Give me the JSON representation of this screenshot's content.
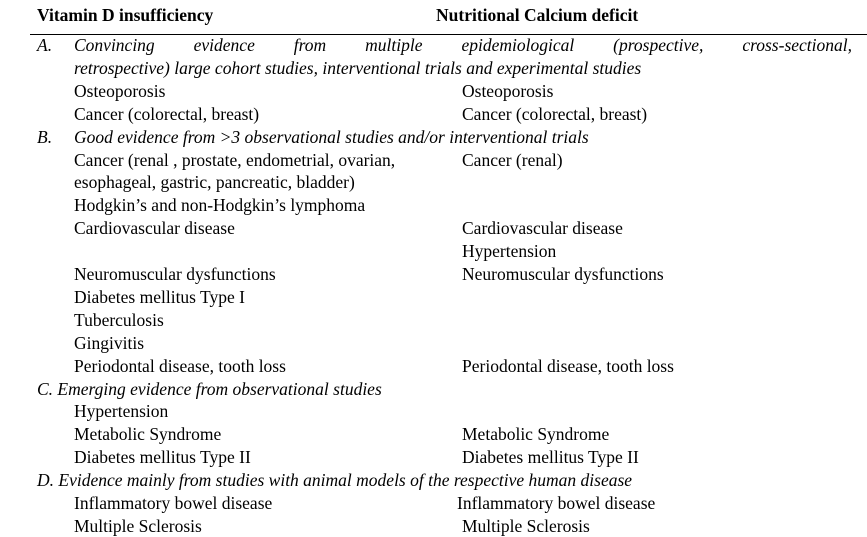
{
  "headers": {
    "left": "Vitamin D insufficiency",
    "right": "Nutritional Calcium deficit"
  },
  "rows": [
    {
      "type": "section",
      "label": "A.",
      "text": "Convincing evidence from multiple epidemiological (prospective, cross-sectional,",
      "justify": true
    },
    {
      "type": "section",
      "label": "",
      "text": "retrospective) large cohort studies, interventional trials and experimental studies"
    },
    {
      "type": "item",
      "left": "Osteoporosis",
      "right": "Osteoporosis"
    },
    {
      "type": "item",
      "left": "Cancer (colorectal, breast)",
      "right": "Cancer (colorectal, breast)"
    },
    {
      "type": "section",
      "label": "B.",
      "text": "Good evidence from >3 observational studies and/or interventional trials"
    },
    {
      "type": "item",
      "left": "Cancer (renal , prostate, endometrial, ovarian,",
      "right": "Cancer (renal)"
    },
    {
      "type": "item",
      "left": "esophageal, gastric, pancreatic, bladder)",
      "right": ""
    },
    {
      "type": "item",
      "left": "Hodgkin’s and non-Hodgkin’s lymphoma",
      "right": ""
    },
    {
      "type": "item",
      "left": "Cardiovascular disease",
      "right": "Cardiovascular disease"
    },
    {
      "type": "item",
      "left": "",
      "right": "Hypertension"
    },
    {
      "type": "item",
      "left": "Neuromuscular dysfunctions",
      "right": "Neuromuscular dysfunctions"
    },
    {
      "type": "item",
      "left": "Diabetes mellitus Type I",
      "right": ""
    },
    {
      "type": "item",
      "left": "Tuberculosis",
      "right": ""
    },
    {
      "type": "item",
      "left": "Gingivitis",
      "right": ""
    },
    {
      "type": "item",
      "left": "Periodontal disease, tooth loss",
      "right": "Periodontal disease, tooth loss"
    },
    {
      "type": "section",
      "label": "",
      "text": "C. Emerging evidence from observational studies",
      "full": true
    },
    {
      "type": "item",
      "left": "Hypertension",
      "right": ""
    },
    {
      "type": "item",
      "left": "Metabolic Syndrome",
      "right": "Metabolic Syndrome"
    },
    {
      "type": "item",
      "left": "Diabetes mellitus Type II",
      "right": "Diabetes mellitus Type II"
    },
    {
      "type": "section",
      "label": "",
      "text": "D. Evidence mainly from studies with animal models of the respective human disease",
      "full": true
    },
    {
      "type": "item",
      "left": "Inflammatory bowel disease",
      "right": "Inflammatory bowel disease",
      "shift": true
    },
    {
      "type": "item",
      "left": "Multiple Sclerosis",
      "right": "Multiple Sclerosis"
    }
  ]
}
